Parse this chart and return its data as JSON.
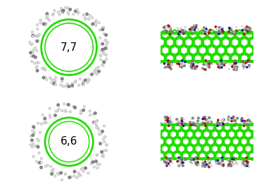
{
  "background_color": "#ffffff",
  "panel_bg": "#ffffff",
  "nanotube_color": "#22dd00",
  "nanotube_lw": 2.0,
  "carbon_color": "#888888",
  "carbon_edge": "#555555",
  "oxygen_color": "#cc0000",
  "oxygen_edge": "#880000",
  "nitrogen_color": "#1111cc",
  "nitrogen_edge": "#000088",
  "hydrogen_color": "#e0e0e0",
  "hydrogen_edge": "#aaaaaa",
  "label_77": "7,7",
  "label_66": "6,6",
  "label_fontsize": 11,
  "border_color": "#888888",
  "border_lw": 0.8
}
